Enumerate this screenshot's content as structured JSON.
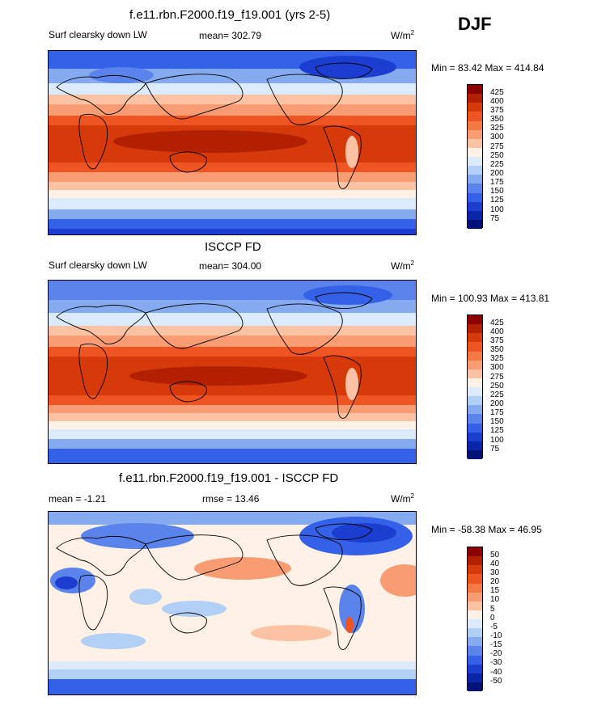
{
  "header": {
    "season": "DJF"
  },
  "panels": [
    {
      "title": "f.e11.rbn.F2000.f19_f19.001 (yrs 2-5)",
      "left_label": "Surf clearsky down LW",
      "center_label": "mean= 302.79",
      "units_base": "W/m",
      "units_exp": "2",
      "minmax": "Min =  83.42 Max = 414.84",
      "ticks": [
        "425",
        "400",
        "375",
        "350",
        "325",
        "300",
        "275",
        "250",
        "225",
        "200",
        "175",
        "150",
        "125",
        "100",
        "75"
      ],
      "colors": [
        "#8b0000",
        "#b22000",
        "#d73a0a",
        "#ee5522",
        "#f37a45",
        "#f79c73",
        "#fbc3a3",
        "#fff1e6",
        "#dbeafc",
        "#b2cff5",
        "#85aaf0",
        "#5a84ec",
        "#3560e8",
        "#1b3ed0",
        "#0a25a8",
        "#001277"
      ]
    },
    {
      "title": "ISCCP FD",
      "left_label": "Surf clearsky down LW",
      "center_label": "mean= 304.00",
      "units_base": "W/m",
      "units_exp": "2",
      "minmax": "Min = 100.93 Max = 413.81",
      "ticks": [
        "425",
        "400",
        "375",
        "350",
        "325",
        "300",
        "275",
        "250",
        "225",
        "200",
        "175",
        "150",
        "125",
        "100",
        "75"
      ],
      "colors": [
        "#8b0000",
        "#b22000",
        "#d73a0a",
        "#ee5522",
        "#f37a45",
        "#f79c73",
        "#fbc3a3",
        "#fff1e6",
        "#dbeafc",
        "#b2cff5",
        "#85aaf0",
        "#5a84ec",
        "#3560e8",
        "#1b3ed0",
        "#0a25a8",
        "#001277"
      ]
    },
    {
      "title": "f.e11.rbn.F2000.f19_f19.001 - ISCCP FD",
      "left_label": "mean =  -1.21",
      "center_label": "rmse =  13.46",
      "units_base": "W/m",
      "units_exp": "2",
      "minmax": "Min = -58.38 Max =  46.95",
      "ticks": [
        "50",
        "40",
        "30",
        "20",
        "15",
        "10",
        "5",
        "0",
        "-5",
        "-10",
        "-15",
        "-20",
        "-30",
        "-40",
        "-50"
      ],
      "colors": [
        "#8b0000",
        "#b22000",
        "#d73a0a",
        "#ee5522",
        "#f37a45",
        "#f79c73",
        "#fbc3a3",
        "#fff1e6",
        "#dbeafc",
        "#b2cff5",
        "#85aaf0",
        "#5a84ec",
        "#3560e8",
        "#1b3ed0",
        "#0a25a8",
        "#001277"
      ]
    }
  ]
}
